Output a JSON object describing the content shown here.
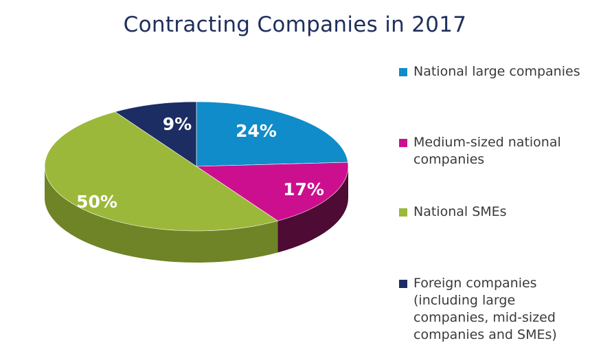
{
  "chart_data": {
    "type": "pie",
    "title": "Contracting Companies in 2017",
    "slices": [
      {
        "name": "National large companies",
        "value": 24,
        "label": "24%",
        "color": "#0f8cc9",
        "side_color": "#0a5f88"
      },
      {
        "name": "Medium-sized national companies",
        "value": 17,
        "label": "17%",
        "color": "#cc0f8f",
        "side_color": "#4e0b33"
      },
      {
        "name": "National SMEs",
        "value": 50,
        "label": "50%",
        "color": "#9cb83a",
        "side_color": "#6e8426"
      },
      {
        "name": "Foreign companies (including large companies, mid-sized companies and SMEs)",
        "value": 9,
        "label": "9%",
        "color": "#1b2d63",
        "side_color": "#0f1a3c"
      }
    ],
    "legend_position": "right",
    "style": "3d"
  }
}
